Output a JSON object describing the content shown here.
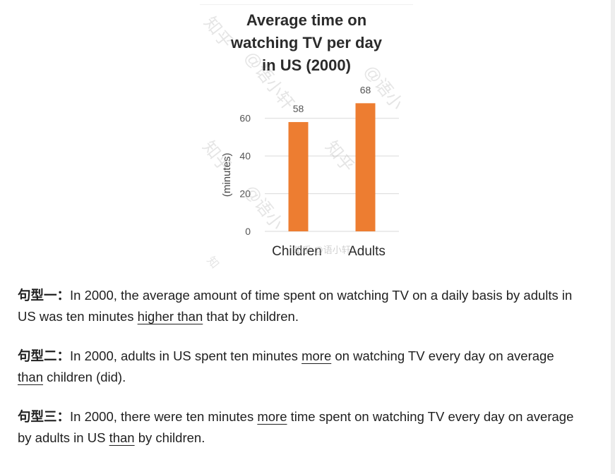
{
  "chart_data": {
    "type": "bar",
    "title_lines": [
      "Average time on",
      "watching TV per day",
      "in US (2000)"
    ],
    "ylabel": "(minutes)",
    "categories": [
      "Children",
      "Adults"
    ],
    "values": [
      58,
      68
    ],
    "data_labels": [
      "58",
      "68"
    ],
    "ylim": [
      0,
      70
    ],
    "yticks": [
      0,
      20,
      40,
      60
    ],
    "ytick_labels": [
      "0",
      "20",
      "40",
      "60"
    ],
    "grid": true,
    "bar_color": "#ED7D31",
    "grid_color": "#D9D9D9"
  },
  "watermark": {
    "marks": [
      "知乎",
      "@语小轩",
      "知乎",
      "@语小",
      "知乎",
      "@语小",
      "知"
    ],
    "corner": "知乎 @语小轩"
  },
  "paragraphs": [
    {
      "lead": "句型一：",
      "segments": [
        {
          "text": "In 2000, the average amount of time spent on watching TV on a daily basis by adults in US was ten minutes ",
          "u": false
        },
        {
          "text": "higher than",
          "u": true
        },
        {
          "text": " that by children.",
          "u": false
        }
      ]
    },
    {
      "lead": "句型二：",
      "segments": [
        {
          "text": "In 2000, adults in US spent ten minutes ",
          "u": false
        },
        {
          "text": "more",
          "u": true
        },
        {
          "text": " on watching TV every day on average ",
          "u": false
        },
        {
          "text": "than",
          "u": true
        },
        {
          "text": " children (did).",
          "u": false
        }
      ]
    },
    {
      "lead": "句型三：",
      "segments": [
        {
          "text": "In 2000, there were ten minutes ",
          "u": false
        },
        {
          "text": "more",
          "u": true
        },
        {
          "text": " time spent on watching TV every day on average by adults in US ",
          "u": false
        },
        {
          "text": "than",
          "u": true
        },
        {
          "text": " by children.",
          "u": false
        }
      ]
    }
  ]
}
